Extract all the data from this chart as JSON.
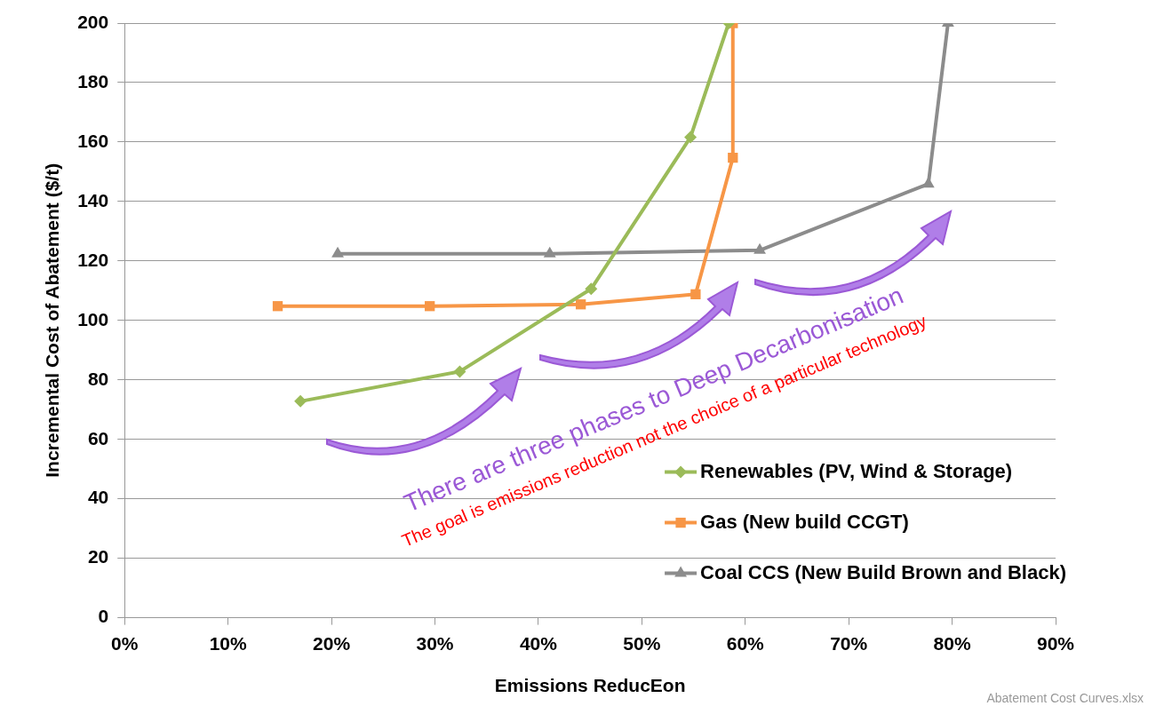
{
  "chart_data": {
    "type": "line",
    "xlabel": "Emissions ReducEon",
    "ylabel": "Incremental Cost of Abatement ($/t)",
    "xlim": [
      0,
      90
    ],
    "xticks": [
      {
        "value": 0,
        "label": "0%"
      },
      {
        "value": 10,
        "label": "10%"
      },
      {
        "value": 20,
        "label": "20%"
      },
      {
        "value": 30,
        "label": "30%"
      },
      {
        "value": 40,
        "label": "40%"
      },
      {
        "value": 50,
        "label": "50%"
      },
      {
        "value": 60,
        "label": "60%"
      },
      {
        "value": 70,
        "label": "70%"
      },
      {
        "value": 80,
        "label": "80%"
      },
      {
        "value": 90,
        "label": "90%"
      }
    ],
    "ylim": [
      0,
      200
    ],
    "yticks": [
      0,
      20,
      40,
      60,
      80,
      100,
      120,
      140,
      160,
      180,
      200
    ],
    "grid": "y",
    "legend": "bottom right",
    "line_style": "solid",
    "series": [
      {
        "name": "Renewables (PV, Wind & Storage)",
        "color": "#9bbb59",
        "marker": "diamond",
        "x": [
          17.0,
          32.4,
          45.1,
          54.7,
          58.4
        ],
        "values": [
          72.8,
          82.8,
          110.6,
          161.6,
          200
        ]
      },
      {
        "name": "Gas (New build CCGT)",
        "color": "#f79646",
        "marker": "square",
        "x": [
          14.8,
          29.5,
          44.1,
          55.2,
          58.8,
          58.8
        ],
        "values": [
          104.8,
          104.8,
          105.4,
          108.8,
          154.7,
          200
        ]
      },
      {
        "name": "Coal CCS (New Build Brown and Black)",
        "color": "#8c8c8c",
        "marker": "triangle",
        "x": [
          20.6,
          41.1,
          61.4,
          77.7,
          79.6
        ],
        "values": [
          122.4,
          122.4,
          123.6,
          145.9,
          200
        ]
      }
    ],
    "annotations": [
      "There are three phases to Deep Decarbonisation",
      "The goal is emissions reduction not the choice of a particular technology",
      "Abatement Cost Curves.xlsx"
    ]
  }
}
